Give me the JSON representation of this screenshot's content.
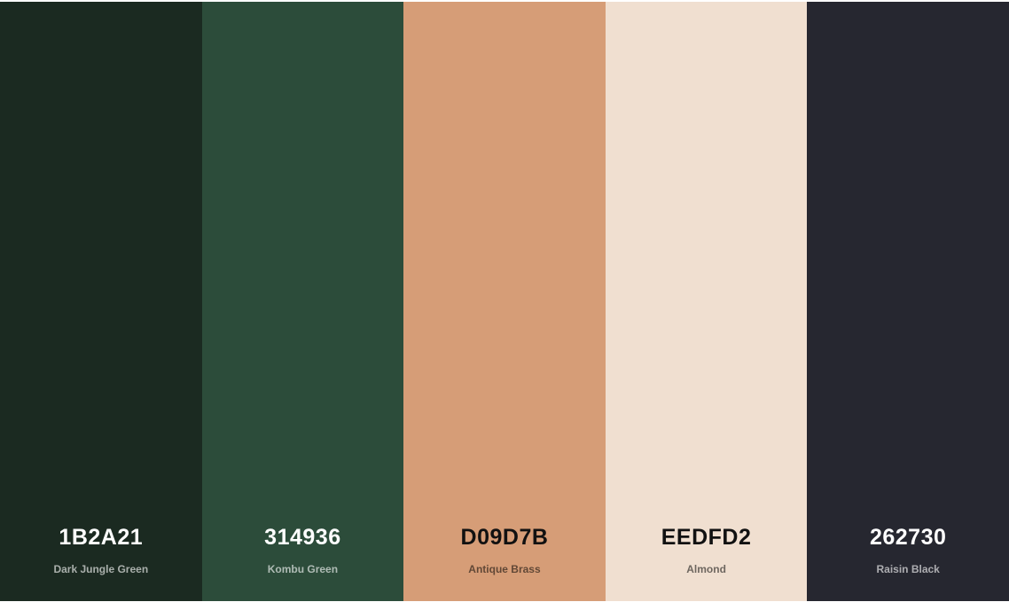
{
  "palette": {
    "colors": [
      {
        "hex": "1B2A21",
        "name": "Dark Jungle Green",
        "color": "#1B2A21",
        "tone": "dark"
      },
      {
        "hex": "314936",
        "name": "Kombu Green",
        "color": "#2C4C3A",
        "tone": "dark"
      },
      {
        "hex": "D09D7B",
        "name": "Antique Brass",
        "color": "#D69D77",
        "tone": "light"
      },
      {
        "hex": "EEDFD2",
        "name": "Almond",
        "color": "#F0DFD0",
        "tone": "light"
      },
      {
        "hex": "262730",
        "name": "Raisin Black",
        "color": "#262730",
        "tone": "dark"
      }
    ]
  }
}
